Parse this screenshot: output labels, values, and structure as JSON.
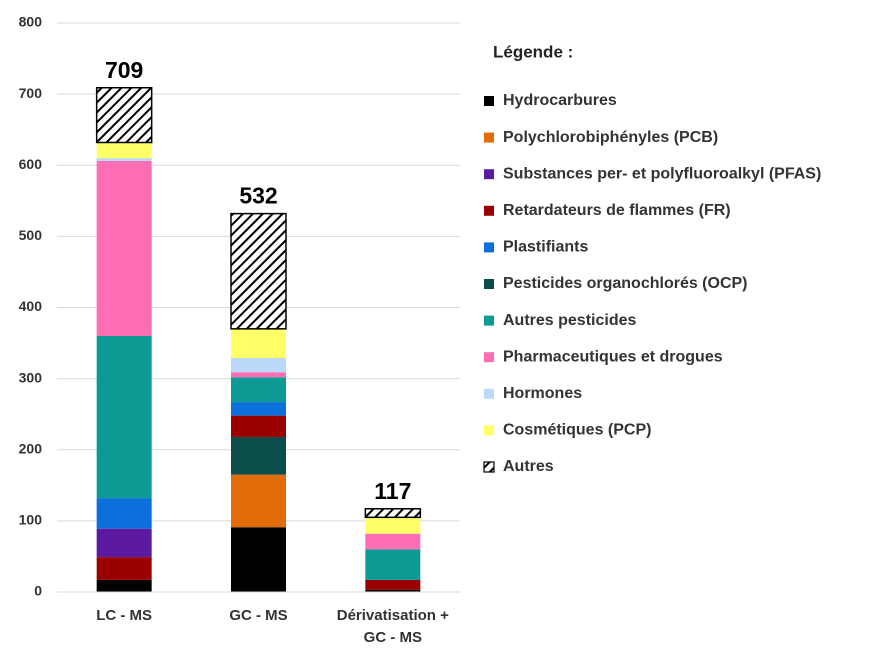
{
  "chart_data": {
    "type": "stacked-bar",
    "legend_title": "Légende :",
    "categories": [
      "LC - MS",
      "GC - MS",
      "Dérivatisation + GC - MS"
    ],
    "totals": [
      709,
      532,
      117
    ],
    "ylim": [
      0,
      800
    ],
    "yticks": [
      0,
      100,
      200,
      300,
      400,
      500,
      600,
      700,
      800
    ],
    "grid": true,
    "legend": "right",
    "series": [
      {
        "name": "Hydrocarbures",
        "color": "#000000",
        "values": [
          17,
          91,
          3
        ]
      },
      {
        "name": "Polychlorobiphényles (PCB)",
        "color": "#e26b0a",
        "values": [
          0,
          74,
          0
        ]
      },
      {
        "name": "Substances per- et polyfluoroalkyl  (PFAS)",
        "color": "#5b1aa0",
        "values": [
          40,
          0,
          0
        ]
      },
      {
        "name": "Retardateurs de flammes (FR)",
        "color": "#9b0000",
        "values": [
          32,
          30,
          14
        ]
      },
      {
        "name": "Plastifiants",
        "color": "#0b6fdc",
        "values": [
          43,
          19,
          0
        ]
      },
      {
        "name": "Pesticides organochlorés (OCP)",
        "color": "#0a4d4a",
        "values": [
          0,
          53,
          0
        ]
      },
      {
        "name": "Autres pesticides",
        "color": "#0e9a94",
        "values": [
          228,
          35,
          43
        ]
      },
      {
        "name": "Pharmaceutiques et drogues",
        "color": "#ff6eb4",
        "values": [
          246,
          7,
          22
        ]
      },
      {
        "name": "Hormones",
        "color": "#bcd8f8",
        "values": [
          4,
          20,
          0
        ]
      },
      {
        "name": "Cosmétiques (PCP)",
        "color": "#ffff66",
        "values": [
          22,
          41,
          23
        ]
      },
      {
        "name": "Autres",
        "color": "#000000",
        "hatch": true,
        "values": [
          77,
          162,
          12
        ]
      }
    ]
  }
}
